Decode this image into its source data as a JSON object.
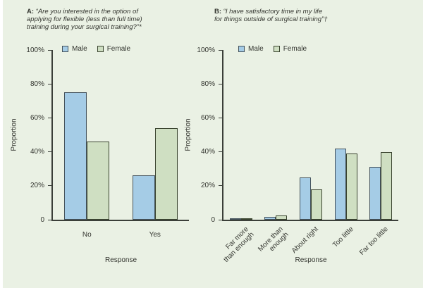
{
  "style": {
    "background": "#eaf1e4",
    "outer_border": "#ffffff",
    "axis_color": "#3b3f39",
    "text_color": "#33352f",
    "male_fill": "#a5cce6",
    "male_border": "#44525c",
    "female_fill": "#cfdfc2",
    "female_border": "#3a442f"
  },
  "chart_data": [
    {
      "type": "bar",
      "panel_label": "A:",
      "title_lines": [
        "“Are you interested in the option of",
        "applying for flexible (less than full time)",
        "training during your surgical training?”*"
      ],
      "categories": [
        "No",
        "Yes"
      ],
      "series": [
        {
          "name": "Male",
          "color": "#a5cce6",
          "border": "#44525c",
          "values": [
            75,
            26
          ]
        },
        {
          "name": "Female",
          "color": "#cfdfc2",
          "border": "#3a442f",
          "values": [
            46,
            54
          ]
        }
      ],
      "xlabel": "Response",
      "ylabel": "Proportion",
      "ylim": [
        0,
        100
      ],
      "grid": false,
      "legend_position": "top-inside",
      "yticks": [
        {
          "value": 0,
          "label": "0"
        },
        {
          "value": 20,
          "label": "20%"
        },
        {
          "value": 40,
          "label": "40%"
        },
        {
          "value": 60,
          "label": "60%"
        },
        {
          "value": 80,
          "label": "80%"
        },
        {
          "value": 100,
          "label": "100%"
        }
      ]
    },
    {
      "type": "bar",
      "panel_label": "B:",
      "title_lines": [
        "“I have satisfactory time in my life",
        "for things outside of surgical training”†"
      ],
      "categories": [
        "Far more\nthan enough",
        "More than\nenough",
        "About right",
        "Too little",
        "Far too little"
      ],
      "series": [
        {
          "name": "Male",
          "color": "#a5cce6",
          "border": "#44525c",
          "values": [
            0.5,
            1.5,
            25,
            42,
            31
          ]
        },
        {
          "name": "Female",
          "color": "#cfdfc2",
          "border": "#3a442f",
          "values": [
            1,
            2.5,
            18,
            39,
            40
          ]
        }
      ],
      "xlabel": "Response",
      "ylabel": "Proportion",
      "ylim": [
        0,
        100
      ],
      "grid": false,
      "legend_position": "top-inside",
      "yticks": [
        {
          "value": 0,
          "label": "0"
        },
        {
          "value": 20,
          "label": "20%"
        },
        {
          "value": 40,
          "label": "40%"
        },
        {
          "value": 60,
          "label": "60%"
        },
        {
          "value": 80,
          "label": "80%"
        },
        {
          "value": 100,
          "label": "100%"
        }
      ]
    }
  ]
}
